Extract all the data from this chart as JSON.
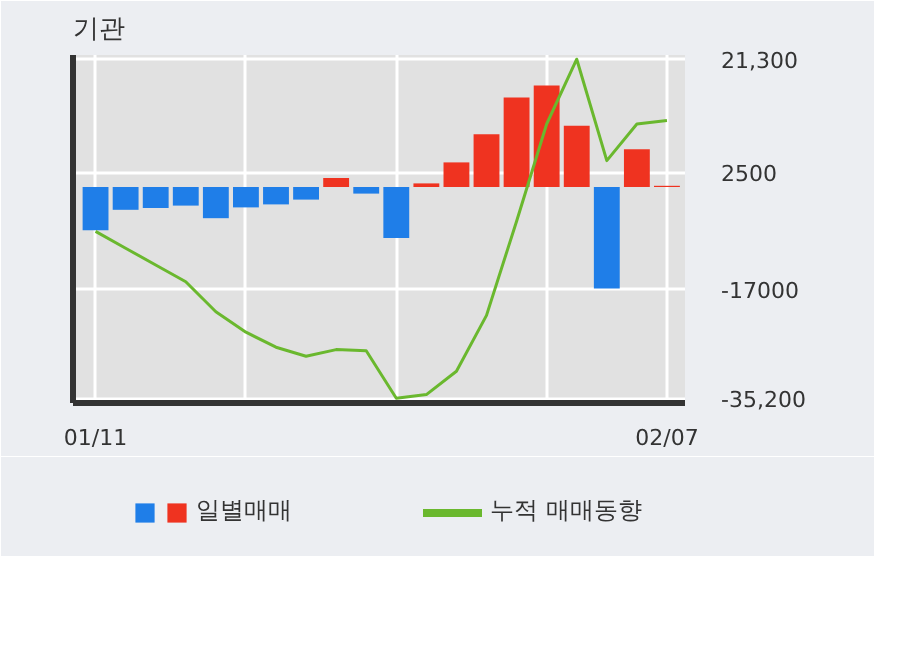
{
  "chart_data": {
    "type": "bar",
    "title": "기관",
    "categories": [
      "01/11",
      null,
      null,
      null,
      null,
      null,
      null,
      null,
      null,
      null,
      null,
      null,
      null,
      null,
      null,
      null,
      null,
      null,
      null,
      "02/07"
    ],
    "series": [
      {
        "name": "일별매매",
        "colors": [
          "#1f7ee8",
          "#1f7ee8",
          "#1f7ee8",
          "#1f7ee8",
          "#1f7ee8",
          "#1f7ee8",
          "#1f7ee8",
          "#1f7ee8",
          "#ef3320",
          "#1f7ee8",
          "#1f7ee8",
          "#ef3320",
          "#ef3320",
          "#ef3320",
          "#ef3320",
          "#ef3320",
          "#ef3320",
          "#1f7ee8",
          "#ef3320",
          "#ef3320"
        ],
        "values": [
          -7200,
          -3800,
          -3500,
          -3100,
          -5200,
          -3400,
          -2900,
          -2100,
          1500,
          -1100,
          -8500,
          600,
          4100,
          8800,
          14900,
          16900,
          10200,
          -16900,
          6300,
          200
        ]
      },
      {
        "name": "누적 매매동향",
        "type": "line",
        "color": "#6ab82e",
        "values": [
          -7400,
          -10200,
          -13000,
          -15800,
          -20800,
          -24200,
          -26700,
          -28200,
          -27100,
          -27300,
          -35200,
          -34600,
          -30700,
          -21400,
          -5700,
          10500,
          21300,
          4400,
          10500,
          11100
        ]
      }
    ],
    "ylim": [
      -36000,
      22000
    ],
    "yticks": [
      {
        "value": 21300,
        "label": "21,300"
      },
      2500,
      -17000,
      {
        "value": -35200,
        "label": "-35,200"
      }
    ],
    "grid": true,
    "legend": "bottom"
  }
}
